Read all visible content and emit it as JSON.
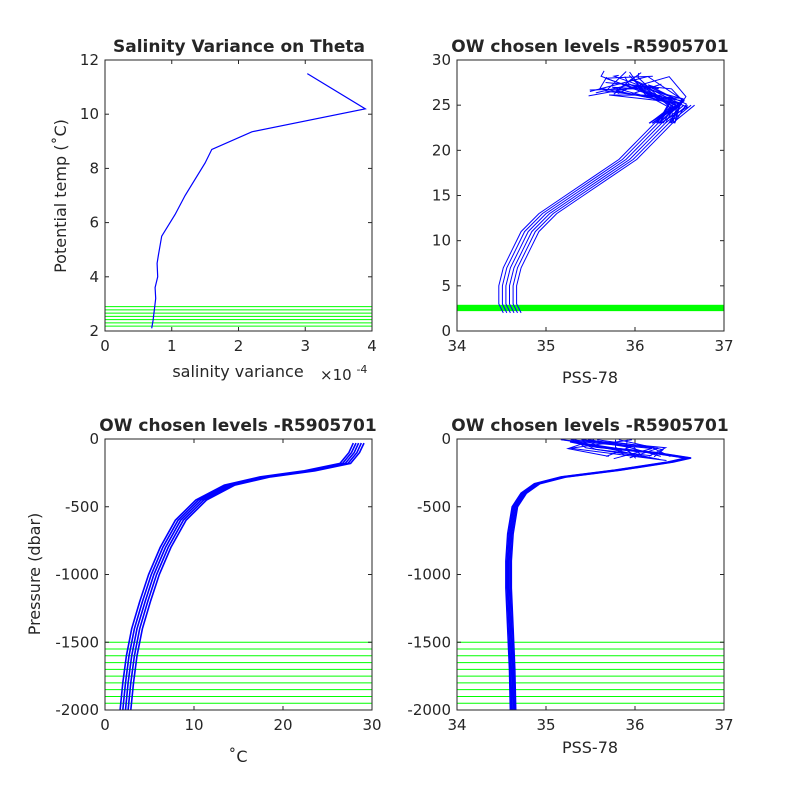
{
  "figure": {
    "background": "#ffffff",
    "colors": {
      "profile": "#0000ff",
      "level_line": "#00ff00",
      "axis": "#262626"
    }
  },
  "chart_data": [
    {
      "type": "line",
      "title": "Salinity Variance on Theta",
      "xlabel": "salinity variance",
      "x_exponent_label": "×10",
      "x_exponent_power": "-4",
      "ylabel": "Potential temp (˚C)",
      "xlim": [
        0,
        4
      ],
      "ylim": [
        2,
        12
      ],
      "xticks": [
        0,
        1,
        2,
        3,
        4
      ],
      "yticks": [
        2,
        4,
        6,
        8,
        10,
        12
      ],
      "series": [
        {
          "values_x": [
            3.03,
            3.9,
            2.2,
            1.6,
            1.5,
            1.2,
            1.05,
            0.85,
            0.8,
            0.78,
            0.79,
            0.75,
            0.76,
            0.74,
            0.72,
            0.7
          ],
          "values_y": [
            11.5,
            10.2,
            9.35,
            8.7,
            8.2,
            7.0,
            6.3,
            5.5,
            4.8,
            4.5,
            4.0,
            3.6,
            3.2,
            2.8,
            2.4,
            2.1
          ]
        }
      ],
      "level_lines_y": [
        2.18,
        2.3,
        2.42,
        2.54,
        2.66,
        2.78,
        2.9
      ]
    },
    {
      "type": "line",
      "title": "OW chosen levels -R5905701",
      "xlabel": "PSS-78",
      "ylabel": "",
      "xlim": [
        34,
        37
      ],
      "ylim": [
        0,
        30
      ],
      "xticks": [
        34,
        35,
        36,
        37
      ],
      "yticks": [
        0,
        5,
        10,
        15,
        20,
        25,
        30
      ],
      "profile_band": {
        "deep": [
          [
            34.6,
            2
          ],
          [
            34.55,
            3
          ],
          [
            34.55,
            5
          ],
          [
            34.6,
            7
          ],
          [
            34.7,
            9
          ],
          [
            34.8,
            11
          ],
          [
            35.0,
            13
          ],
          [
            35.3,
            15
          ],
          [
            35.6,
            17
          ],
          [
            35.9,
            19
          ],
          [
            36.1,
            21
          ],
          [
            36.3,
            23
          ],
          [
            36.55,
            25
          ]
        ],
        "offsets": [
          -0.08,
          -0.04,
          0,
          0.04,
          0.08,
          0.12
        ],
        "top_fan": {
          "x_range": [
            35.3,
            36.6
          ],
          "y_range": [
            22,
            29
          ]
        }
      },
      "level_band_y": [
        2.2,
        2.9
      ]
    },
    {
      "type": "line",
      "title": "OW chosen levels -R5905701",
      "xlabel": "˚C",
      "ylabel": "Pressure (dbar)",
      "xlim": [
        0,
        30
      ],
      "ylim": [
        -2000,
        0
      ],
      "xticks": [
        0,
        10,
        20,
        30
      ],
      "yticks": [
        -2000,
        -1500,
        -1000,
        -500,
        0
      ],
      "profile_band": {
        "curve": [
          [
            2.3,
            -2000
          ],
          [
            2.6,
            -1800
          ],
          [
            3.0,
            -1600
          ],
          [
            3.6,
            -1400
          ],
          [
            4.5,
            -1200
          ],
          [
            5.5,
            -1000
          ],
          [
            6.8,
            -800
          ],
          [
            8.5,
            -600
          ],
          [
            10.8,
            -450
          ],
          [
            14,
            -340
          ],
          [
            18,
            -280
          ],
          [
            23,
            -235
          ],
          [
            27,
            -180
          ],
          [
            28,
            -100
          ],
          [
            28.5,
            -30
          ]
        ],
        "offsets": [
          -0.6,
          -0.3,
          0,
          0.3,
          0.6
        ]
      },
      "level_lines_y": [
        -1500,
        -1550,
        -1600,
        -1650,
        -1700,
        -1750,
        -1800,
        -1850,
        -1900,
        -1950
      ]
    },
    {
      "type": "line",
      "title": "OW chosen levels -R5905701",
      "xlabel": "PSS-78",
      "ylabel": "",
      "xlim": [
        34,
        37
      ],
      "ylim": [
        -2000,
        0
      ],
      "xticks": [
        34,
        35,
        36,
        37
      ],
      "yticks": [
        -2000,
        -1500,
        -1000,
        -500,
        0
      ],
      "profile_band": {
        "curve": [
          [
            34.63,
            -2000
          ],
          [
            34.62,
            -1700
          ],
          [
            34.6,
            -1400
          ],
          [
            34.58,
            -1100
          ],
          [
            34.58,
            -900
          ],
          [
            34.6,
            -700
          ],
          [
            34.65,
            -500
          ],
          [
            34.75,
            -400
          ],
          [
            34.9,
            -330
          ],
          [
            35.2,
            -280
          ],
          [
            35.8,
            -230
          ],
          [
            36.4,
            -170
          ],
          [
            36.6,
            -140
          ],
          [
            36.2,
            -100
          ],
          [
            35.6,
            -60
          ],
          [
            35.3,
            -20
          ]
        ],
        "offsets": [
          -0.03,
          -0.015,
          0,
          0.015,
          0.03
        ]
      },
      "level_lines_y": [
        -1500,
        -1550,
        -1600,
        -1650,
        -1700,
        -1750,
        -1800,
        -1850,
        -1900,
        -1950
      ]
    }
  ]
}
